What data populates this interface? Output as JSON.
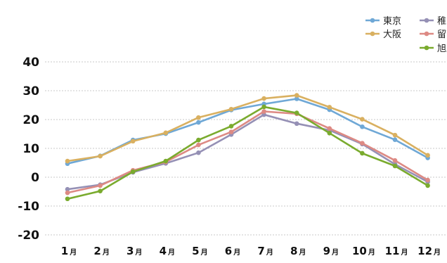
{
  "chart_data": {
    "type": "line",
    "categories": [
      "1",
      "2",
      "3",
      "4",
      "5",
      "6",
      "7",
      "8",
      "9",
      "10",
      "11",
      "12"
    ],
    "category_unit": "月",
    "ylim": [
      -20,
      40
    ],
    "yticks": [
      -20,
      -10,
      0,
      10,
      20,
      30,
      40
    ],
    "grid": true,
    "legend_position": "top-right",
    "series": [
      {
        "name": "東京",
        "color": "#6fa8d6",
        "values": [
          4.7,
          7.4,
          12.9,
          15.1,
          19.0,
          23.3,
          25.4,
          27.2,
          23.4,
          17.5,
          13.0,
          6.7
        ]
      },
      {
        "name": "大阪",
        "color": "#d9b060",
        "values": [
          5.6,
          7.3,
          12.5,
          15.4,
          20.7,
          23.6,
          27.3,
          28.4,
          24.3,
          20.1,
          14.6,
          7.6
        ]
      },
      {
        "name": "稚内",
        "color": "#9590b5",
        "values": [
          -4.2,
          -2.6,
          1.7,
          4.8,
          8.5,
          14.8,
          21.7,
          18.6,
          16.3,
          11.5,
          4.5,
          -1.6
        ]
      },
      {
        "name": "留萌",
        "color": "#dd8a84",
        "values": [
          -5.4,
          -2.9,
          2.4,
          5.3,
          11.2,
          15.7,
          22.8,
          22.0,
          16.9,
          11.8,
          5.8,
          -1.0
        ]
      },
      {
        "name": "旭川",
        "color": "#7aab2e",
        "values": [
          -7.5,
          -4.8,
          1.9,
          5.6,
          12.9,
          17.7,
          24.4,
          22.3,
          15.3,
          8.3,
          3.9,
          -2.9
        ]
      }
    ]
  }
}
